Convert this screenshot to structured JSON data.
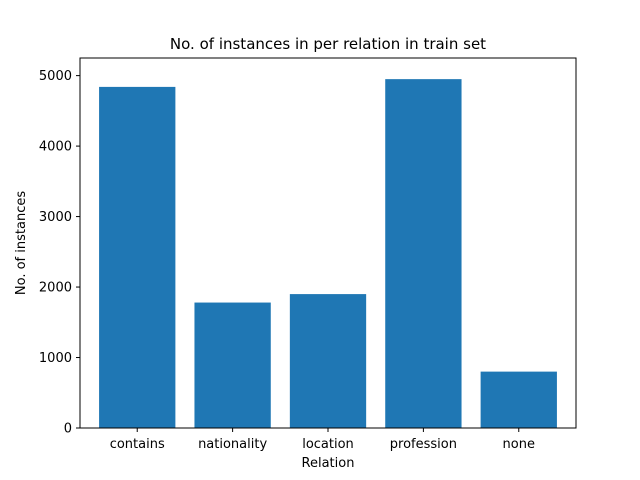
{
  "chart_data": {
    "type": "bar",
    "title": "No. of instances in per relation in train set",
    "xlabel": "Relation",
    "ylabel": "No. of instances",
    "categories": [
      "contains",
      "nationality",
      "location",
      "profession",
      "none"
    ],
    "values": [
      4840,
      1780,
      1900,
      4950,
      800
    ],
    "ylim": [
      0,
      5250
    ],
    "yticks": [
      0,
      1000,
      2000,
      3000,
      4000,
      5000
    ],
    "bar_color": "#1f77b4",
    "grid": false,
    "legend": "none"
  }
}
